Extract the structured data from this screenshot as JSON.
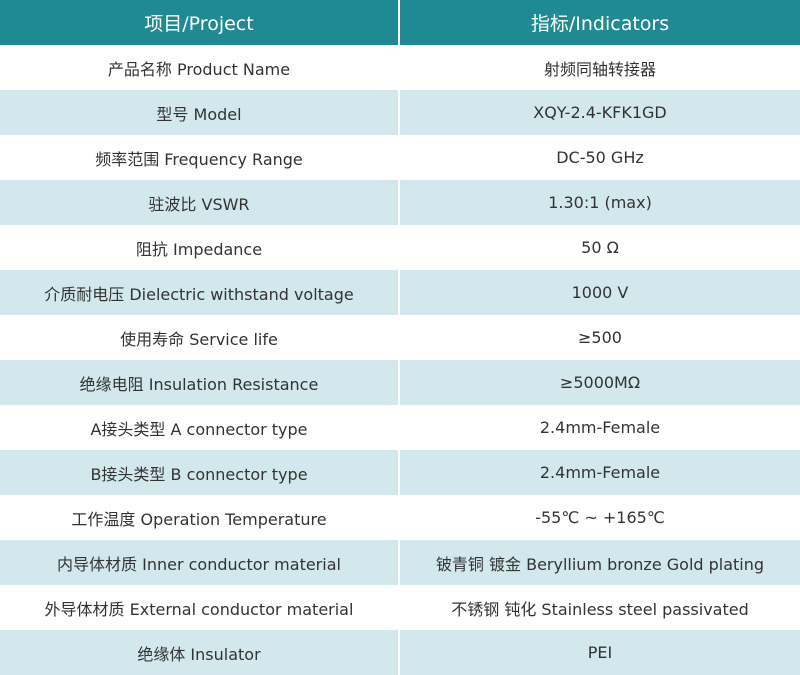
{
  "table": {
    "header": [
      "项目/Project",
      "指标/Indicators"
    ],
    "rows": [
      [
        "产品名称 Product Name",
        "射频同轴转接器"
      ],
      [
        "型号 Model",
        "XQY-2.4-KFK1GD"
      ],
      [
        "频率范围 Frequency Range",
        "DC-50 GHz"
      ],
      [
        "驻波比 VSWR",
        "1.30:1 (max)"
      ],
      [
        "阻抗 Impedance",
        "50 Ω"
      ],
      [
        "介质耐电压 Dielectric withstand voltage",
        "1000 V"
      ],
      [
        "使用寿命 Service life",
        "≥500"
      ],
      [
        "绝缘电阻 Insulation Resistance",
        "≥5000MΩ"
      ],
      [
        "A接头类型 A connector type",
        "2.4mm-Female"
      ],
      [
        "B接头类型 B connector type",
        "2.4mm-Female"
      ],
      [
        "工作温度 Operation Temperature",
        "-55℃ ~ +165℃"
      ],
      [
        "内导体材质 Inner conductor material",
        "铍青铜 镀金 Beryllium bronze Gold plating"
      ],
      [
        "外导体材质 External conductor material",
        "不锈钢 钝化 Stainless steel passivated"
      ],
      [
        "绝缘体 Insulator",
        "PEI"
      ]
    ]
  }
}
